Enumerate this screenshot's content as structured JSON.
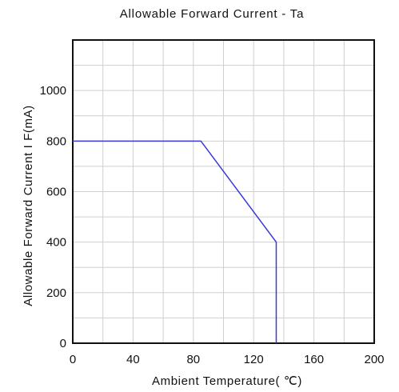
{
  "chart_data": {
    "type": "line",
    "title": "Allowable Forward Current - Ta",
    "xlabel": "Ambient Temperature( ℃)",
    "ylabel": "Allowable Forward Current I F(mA)",
    "xlim": [
      0,
      200
    ],
    "ylim": [
      0,
      1200
    ],
    "xticks": [
      0,
      40,
      80,
      120,
      160,
      200
    ],
    "yticks": [
      0,
      200,
      400,
      600,
      800,
      1000
    ],
    "grid": true,
    "series": [
      {
        "x": [
          0,
          85,
          135,
          135
        ],
        "y": [
          800,
          800,
          400,
          0
        ]
      }
    ],
    "colors": {
      "series": "#3a3ad8",
      "grid": "#cfcfcf",
      "frame": "#111111"
    }
  }
}
